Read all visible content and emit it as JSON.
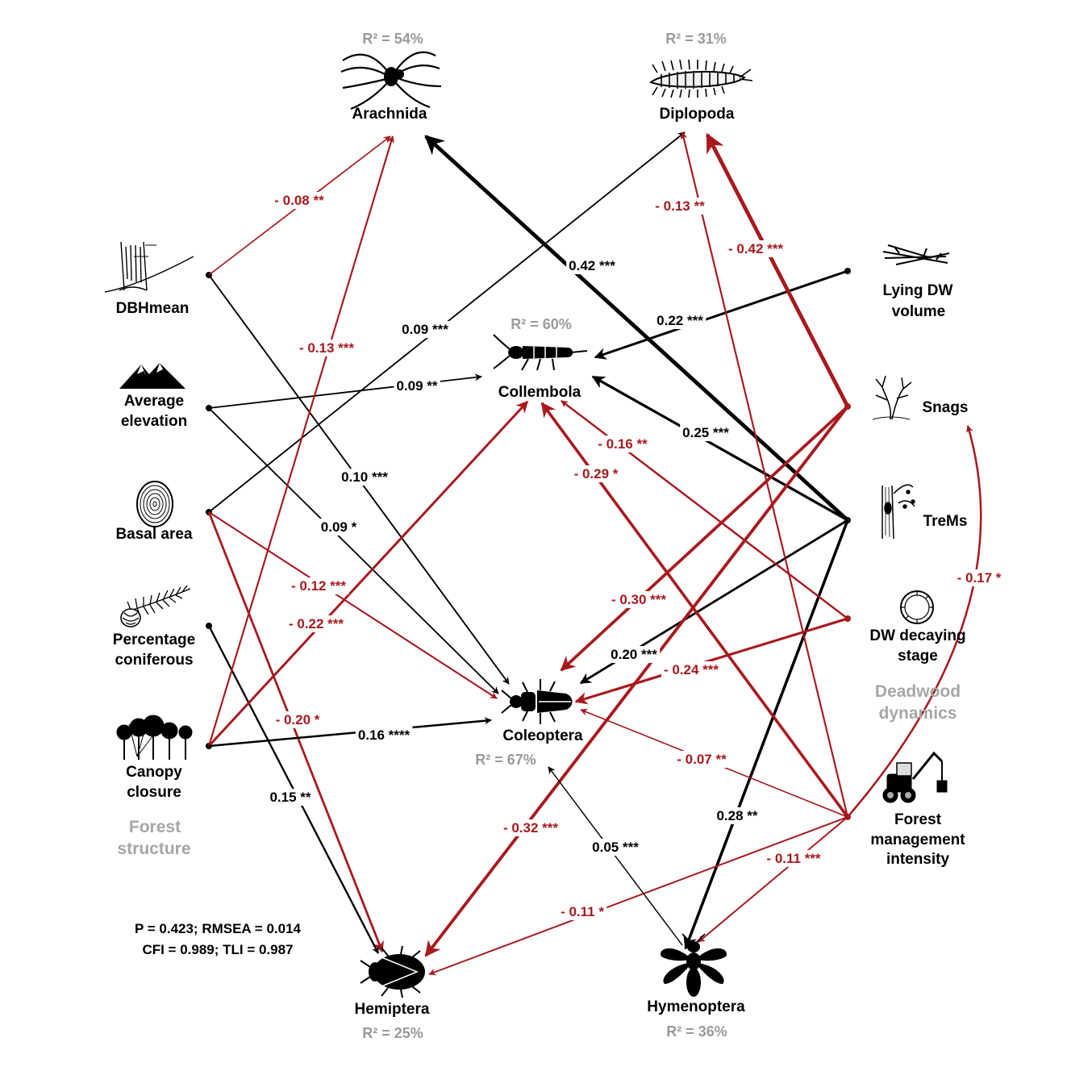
{
  "colors": {
    "positive": "#000000",
    "negative": "#a8191e",
    "r2": "#9a9a9a",
    "group": "#a6a6a6"
  },
  "nodes": {
    "arachnida": {
      "label": "Arachnida",
      "r2": "R² = 54%",
      "icon": "spider-icon"
    },
    "diplopoda": {
      "label": "Diplopoda",
      "r2": "R² = 31%",
      "icon": "millipede-icon"
    },
    "collembola": {
      "label": "Collembola",
      "r2": "R² = 60%",
      "icon": "springtail-icon"
    },
    "coleoptera": {
      "label": "Coleoptera",
      "r2": "R² = 67%",
      "icon": "beetle-icon"
    },
    "hemiptera": {
      "label": "Hemiptera",
      "r2": "R² = 25%",
      "icon": "bug-icon"
    },
    "hymenoptera": {
      "label": "Hymenoptera",
      "r2": "R² = 36%",
      "icon": "wasp-icon"
    },
    "dbhmean": {
      "label1": "DBHmean",
      "icon": "tree-trunk-icon"
    },
    "elevation": {
      "label1": "Average",
      "label2": "elevation",
      "icon": "mountains-icon"
    },
    "basal": {
      "label1": "Basal area",
      "icon": "tree-rings-icon"
    },
    "conifer": {
      "label1": "Percentage",
      "label2": "coniferous",
      "icon": "conifer-branch-icon"
    },
    "canopy": {
      "label1": "Canopy",
      "label2": "closure",
      "icon": "tree-canopy-icon"
    },
    "lyingdw": {
      "label1": "Lying DW",
      "label2": "volume",
      "icon": "lying-deadwood-icon"
    },
    "snags": {
      "label1": "Snags",
      "icon": "snag-tree-icon"
    },
    "trems": {
      "label1": "TreMs",
      "icon": "tree-microhabitat-icon"
    },
    "dwdecay": {
      "label1": "DW decaying",
      "label2": "stage",
      "icon": "decay-ring-icon"
    },
    "fmi": {
      "label1": "Forest",
      "label2": "management",
      "label3": "intensity",
      "icon": "harvester-icon"
    }
  },
  "groups": {
    "forest_structure": {
      "line1": "Forest",
      "line2": "structure"
    },
    "deadwood_dynamics": {
      "line1": "Deadwood",
      "line2": "dynamics"
    }
  },
  "fit_stats": {
    "line1": "P = 0.423; RMSEA = 0.014",
    "line2": "CFI = 0.989; TLI = 0.987"
  },
  "paths": [
    {
      "from": "dbhmean",
      "to": "arachnida",
      "label": "- 0.08 **",
      "sign": "negative",
      "strength": 0.08
    },
    {
      "from": "dbhmean",
      "to": "coleoptera",
      "label": "0.10 ***",
      "sign": "positive",
      "strength": 0.1
    },
    {
      "from": "elevation",
      "to": "collembola",
      "label": "0.09 **",
      "sign": "positive",
      "strength": 0.09
    },
    {
      "from": "elevation",
      "to": "coleoptera",
      "label": "0.09 *",
      "sign": "positive",
      "strength": 0.09
    },
    {
      "from": "basal",
      "to": "diplopoda",
      "label": "0.09 ***",
      "sign": "positive",
      "strength": 0.09
    },
    {
      "from": "basal",
      "to": "coleoptera",
      "label": "- 0.12 ***",
      "sign": "negative",
      "strength": 0.12
    },
    {
      "from": "basal",
      "to": "hemiptera",
      "label": "- 0.20 *",
      "sign": "negative",
      "strength": 0.2
    },
    {
      "from": "conifer",
      "to": "hemiptera",
      "label": "0.15 **",
      "sign": "positive",
      "strength": 0.15
    },
    {
      "from": "canopy",
      "to": "arachnida",
      "label": "- 0.13 ***",
      "sign": "negative",
      "strength": 0.13
    },
    {
      "from": "canopy",
      "to": "collembola",
      "label": "- 0.22 ***",
      "sign": "negative",
      "strength": 0.22
    },
    {
      "from": "canopy",
      "to": "coleoptera",
      "label": "0.16 ****",
      "sign": "positive",
      "strength": 0.16
    },
    {
      "from": "lyingdw",
      "to": "collembola",
      "label": "0.22 ***",
      "sign": "positive",
      "strength": 0.22
    },
    {
      "from": "trems",
      "to": "arachnida",
      "label": "0.42 ***",
      "sign": "positive",
      "strength": 0.42
    },
    {
      "from": "trems",
      "to": "collembola",
      "label": "0.25 ***",
      "sign": "positive",
      "strength": 0.25
    },
    {
      "from": "trems",
      "to": "coleoptera",
      "label": "0.20 ***",
      "sign": "positive",
      "strength": 0.2
    },
    {
      "from": "trems",
      "to": "hymenoptera",
      "label": "0.28 **",
      "sign": "positive",
      "strength": 0.28
    },
    {
      "from": "snags",
      "to": "diplopoda",
      "label": "- 0.42 ***",
      "sign": "negative",
      "strength": 0.42
    },
    {
      "from": "snags",
      "to": "coleoptera",
      "label": "- 0.30 ***",
      "sign": "negative",
      "strength": 0.3
    },
    {
      "from": "snags",
      "to": "hemiptera",
      "label": "- 0.32 ***",
      "sign": "negative",
      "strength": 0.32
    },
    {
      "from": "dwdecay",
      "to": "collembola",
      "label": "- 0.16 **",
      "sign": "negative",
      "strength": 0.16
    },
    {
      "from": "dwdecay",
      "to": "coleoptera",
      "label": "- 0.24 ***",
      "sign": "negative",
      "strength": 0.24
    },
    {
      "from": "fmi",
      "to": "diplopoda",
      "label": "- 0.13 **",
      "sign": "negative",
      "strength": 0.13
    },
    {
      "from": "fmi",
      "to": "collembola",
      "label": "- 0.29 *",
      "sign": "negative",
      "strength": 0.29
    },
    {
      "from": "fmi",
      "to": "coleoptera",
      "label": "- 0.07 **",
      "sign": "negative",
      "strength": 0.07
    },
    {
      "from": "fmi",
      "to": "hemiptera",
      "label": "- 0.11 *",
      "sign": "negative",
      "strength": 0.11
    },
    {
      "from": "fmi",
      "to": "hymenoptera",
      "label": "- 0.11 ***",
      "sign": "negative",
      "strength": 0.11
    },
    {
      "from": "fmi",
      "to": "snags",
      "label": "- 0.17 *",
      "sign": "negative",
      "strength": 0.17
    },
    {
      "from": "hymenoptera",
      "to": "coleoptera",
      "label": "0.05 ***",
      "sign": "positive",
      "strength": 0.05
    }
  ]
}
